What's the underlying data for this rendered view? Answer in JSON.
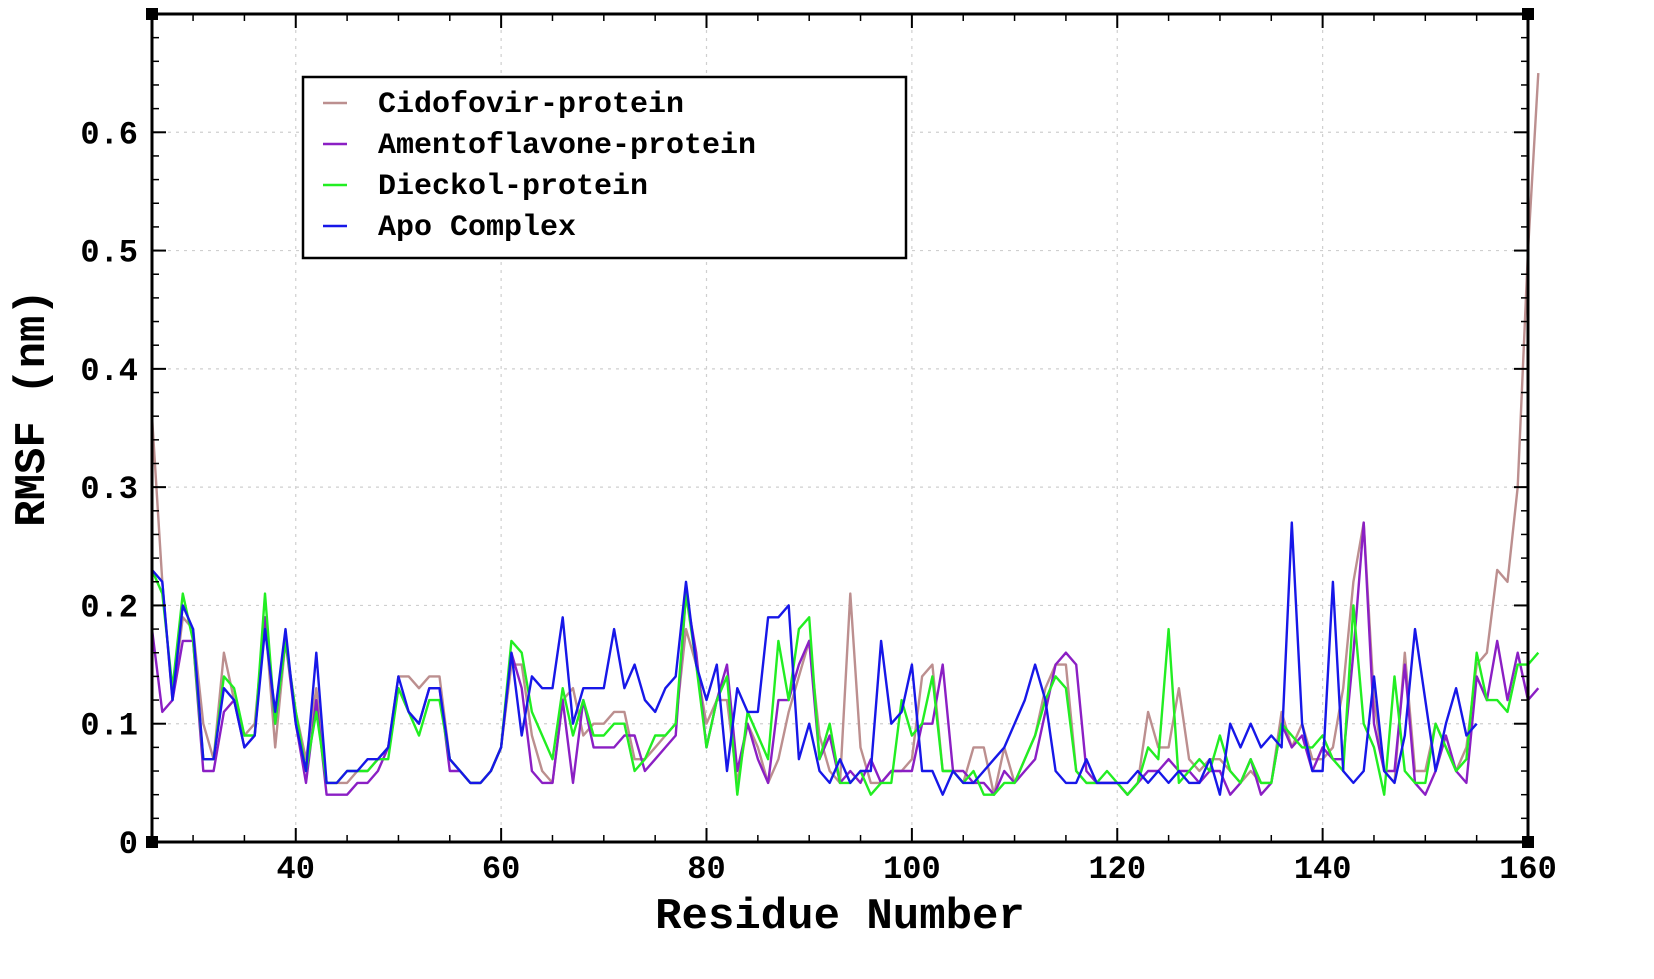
{
  "chart_data": {
    "type": "line",
    "title": "",
    "xlabel": "Residue Number",
    "ylabel": "RMSF (nm)",
    "xlim": [
      26,
      160
    ],
    "ylim": [
      0,
      0.7
    ],
    "x_ticks": [
      40,
      60,
      80,
      100,
      120,
      140,
      160
    ],
    "x_tick_labels": [
      "40",
      "60",
      "80",
      "100",
      "120",
      "140",
      "160"
    ],
    "y_ticks": [
      0,
      0.1,
      0.2,
      0.3,
      0.4,
      0.5,
      0.6
    ],
    "y_tick_labels": [
      "0",
      "0.1",
      "0.2",
      "0.3",
      "0.4",
      "0.5",
      "0.6"
    ],
    "grid": true,
    "legend_position": "top-left",
    "x_start": 26,
    "series": [
      {
        "name": "Cidofovir-protein",
        "color": "#bc8f8f",
        "values": [
          0.36,
          0.22,
          0.12,
          0.19,
          0.18,
          0.1,
          0.07,
          0.16,
          0.12,
          0.09,
          0.1,
          0.19,
          0.08,
          0.17,
          0.11,
          0.07,
          0.13,
          0.05,
          0.05,
          0.05,
          0.06,
          0.06,
          0.07,
          0.08,
          0.14,
          0.14,
          0.13,
          0.14,
          0.14,
          0.07,
          0.06,
          0.05,
          0.05,
          0.06,
          0.08,
          0.15,
          0.15,
          0.09,
          0.06,
          0.05,
          0.12,
          0.13,
          0.09,
          0.1,
          0.1,
          0.11,
          0.11,
          0.07,
          0.07,
          0.08,
          0.09,
          0.1,
          0.18,
          0.15,
          0.1,
          0.12,
          0.12,
          0.05,
          0.1,
          0.08,
          0.05,
          0.07,
          0.11,
          0.14,
          0.17,
          0.09,
          0.06,
          0.05,
          0.21,
          0.08,
          0.05,
          0.05,
          0.06,
          0.06,
          0.07,
          0.14,
          0.15,
          0.06,
          0.06,
          0.05,
          0.08,
          0.08,
          0.04,
          0.08,
          0.05,
          0.07,
          0.09,
          0.13,
          0.15,
          0.15,
          0.06,
          0.05,
          0.05,
          0.05,
          0.05,
          0.04,
          0.05,
          0.11,
          0.08,
          0.08,
          0.13,
          0.07,
          0.06,
          0.07,
          0.07,
          0.06,
          0.05,
          0.06,
          0.05,
          0.05,
          0.11,
          0.08,
          0.1,
          0.07,
          0.07,
          0.08,
          0.13,
          0.22,
          0.27,
          0.12,
          0.06,
          0.05,
          0.16,
          0.06,
          0.06,
          0.1,
          0.08,
          0.06,
          0.08,
          0.15,
          0.16,
          0.23,
          0.22,
          0.3,
          0.5,
          0.65
        ]
      },
      {
        "name": "Amentoflavone-protein",
        "color": "#8b1fc4",
        "values": [
          0.18,
          0.11,
          0.12,
          0.17,
          0.17,
          0.06,
          0.06,
          0.11,
          0.12,
          0.08,
          0.09,
          0.19,
          0.1,
          0.17,
          0.1,
          0.05,
          0.12,
          0.04,
          0.04,
          0.04,
          0.05,
          0.05,
          0.06,
          0.08,
          0.13,
          0.11,
          0.1,
          0.13,
          0.13,
          0.06,
          0.06,
          0.05,
          0.05,
          0.06,
          0.08,
          0.16,
          0.13,
          0.06,
          0.05,
          0.05,
          0.12,
          0.05,
          0.12,
          0.08,
          0.08,
          0.08,
          0.09,
          0.09,
          0.06,
          0.07,
          0.08,
          0.09,
          0.21,
          0.16,
          0.08,
          0.12,
          0.15,
          0.06,
          0.1,
          0.07,
          0.05,
          0.12,
          0.12,
          0.15,
          0.17,
          0.07,
          0.09,
          0.05,
          0.06,
          0.05,
          0.07,
          0.05,
          0.06,
          0.06,
          0.06,
          0.1,
          0.1,
          0.15,
          0.06,
          0.06,
          0.05,
          0.05,
          0.04,
          0.06,
          0.05,
          0.06,
          0.07,
          0.11,
          0.15,
          0.16,
          0.15,
          0.06,
          0.05,
          0.05,
          0.05,
          0.04,
          0.05,
          0.06,
          0.06,
          0.07,
          0.06,
          0.06,
          0.05,
          0.06,
          0.06,
          0.04,
          0.05,
          0.07,
          0.04,
          0.05,
          0.1,
          0.08,
          0.09,
          0.06,
          0.08,
          0.07,
          0.07,
          0.16,
          0.27,
          0.1,
          0.06,
          0.06,
          0.15,
          0.05,
          0.04,
          0.06,
          0.09,
          0.06,
          0.05,
          0.14,
          0.12,
          0.17,
          0.12,
          0.16,
          0.12,
          0.13
        ]
      },
      {
        "name": "Dieckol-protein",
        "color": "#22ee22",
        "values": [
          0.23,
          0.21,
          0.13,
          0.21,
          0.17,
          0.07,
          0.07,
          0.14,
          0.13,
          0.09,
          0.09,
          0.21,
          0.1,
          0.17,
          0.11,
          0.06,
          0.11,
          0.05,
          0.05,
          0.06,
          0.06,
          0.06,
          0.07,
          0.07,
          0.13,
          0.11,
          0.09,
          0.12,
          0.12,
          0.07,
          0.06,
          0.05,
          0.05,
          0.06,
          0.08,
          0.17,
          0.16,
          0.11,
          0.09,
          0.07,
          0.13,
          0.09,
          0.12,
          0.09,
          0.09,
          0.1,
          0.1,
          0.06,
          0.07,
          0.09,
          0.09,
          0.1,
          0.21,
          0.15,
          0.08,
          0.12,
          0.14,
          0.04,
          0.11,
          0.09,
          0.07,
          0.17,
          0.12,
          0.18,
          0.19,
          0.07,
          0.1,
          0.05,
          0.05,
          0.06,
          0.04,
          0.05,
          0.05,
          0.12,
          0.09,
          0.1,
          0.14,
          0.06,
          0.06,
          0.05,
          0.06,
          0.04,
          0.04,
          0.05,
          0.05,
          0.07,
          0.09,
          0.12,
          0.14,
          0.13,
          0.06,
          0.05,
          0.05,
          0.06,
          0.05,
          0.04,
          0.05,
          0.08,
          0.07,
          0.18,
          0.05,
          0.06,
          0.07,
          0.06,
          0.09,
          0.06,
          0.05,
          0.07,
          0.05,
          0.05,
          0.1,
          0.09,
          0.08,
          0.08,
          0.09,
          0.07,
          0.06,
          0.2,
          0.1,
          0.08,
          0.04,
          0.14,
          0.06,
          0.05,
          0.05,
          0.1,
          0.08,
          0.06,
          0.07,
          0.16,
          0.12,
          0.12,
          0.11,
          0.15,
          0.15,
          0.16
        ]
      },
      {
        "name": "Apo Complex",
        "color": "#1717e8",
        "values": [
          0.23,
          0.22,
          0.12,
          0.2,
          0.18,
          0.07,
          0.07,
          0.13,
          0.12,
          0.08,
          0.09,
          0.18,
          0.11,
          0.18,
          0.1,
          0.06,
          0.16,
          0.05,
          0.05,
          0.06,
          0.06,
          0.07,
          0.07,
          0.08,
          0.14,
          0.11,
          0.1,
          0.13,
          0.13,
          0.07,
          0.06,
          0.05,
          0.05,
          0.06,
          0.08,
          0.16,
          0.09,
          0.14,
          0.13,
          0.13,
          0.19,
          0.1,
          0.13,
          0.13,
          0.13,
          0.18,
          0.13,
          0.15,
          0.12,
          0.11,
          0.13,
          0.14,
          0.22,
          0.15,
          0.12,
          0.15,
          0.06,
          0.13,
          0.11,
          0.11,
          0.19,
          0.19,
          0.2,
          0.07,
          0.1,
          0.06,
          0.05,
          0.07,
          0.05,
          0.06,
          0.06,
          0.17,
          0.1,
          0.11,
          0.15,
          0.06,
          0.06,
          0.04,
          0.06,
          0.05,
          0.05,
          0.06,
          0.07,
          0.08,
          0.1,
          0.12,
          0.15,
          0.12,
          0.06,
          0.05,
          0.05,
          0.07,
          0.05,
          0.05,
          0.05,
          0.05,
          0.06,
          0.05,
          0.06,
          0.05,
          0.06,
          0.05,
          0.05,
          0.07,
          0.04,
          0.1,
          0.08,
          0.1,
          0.08,
          0.09,
          0.08,
          0.27,
          0.1,
          0.06,
          0.06,
          0.22,
          0.06,
          0.05,
          0.06,
          0.14,
          0.06,
          0.05,
          0.09,
          0.18,
          0.12,
          0.06,
          0.1,
          0.13,
          0.09,
          0.1
        ]
      }
    ]
  }
}
